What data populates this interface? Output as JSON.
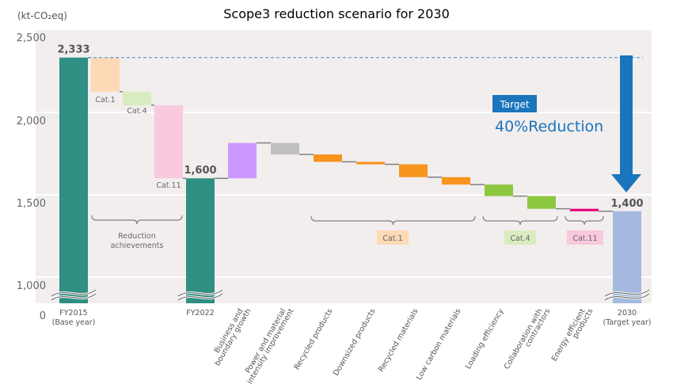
{
  "title": "Scope3 reduction scenario for 2030",
  "unit_label": "(kt-CO₂eq)",
  "chart_data": {
    "type": "bar",
    "subtype": "waterfall",
    "title": "Scope3 reduction scenario for 2030",
    "ylabel": "(kt-CO₂eq)",
    "ylim": [
      0,
      2500
    ],
    "axis_break": "between 0 and 1,000",
    "yticks": [
      "0",
      "1,000",
      "1,500",
      "2,000",
      "2,500"
    ],
    "grid": true,
    "bars": [
      {
        "key": "fy2015",
        "label": "FY2015\n(Base year)",
        "kind": "total",
        "value": 2333,
        "value_label": "2,333",
        "color": "#2f8f83"
      },
      {
        "key": "cat1",
        "label": "Cat.1",
        "kind": "step",
        "value": -207,
        "color": "#fdd9b5",
        "group": "Reduction achievements"
      },
      {
        "key": "cat4",
        "label": "Cat.4",
        "kind": "step",
        "value": -82,
        "color": "#d9ecbf",
        "group": "Reduction achievements"
      },
      {
        "key": "cat11",
        "label": "Cat.11",
        "kind": "step",
        "value": -444,
        "color": "#f9c9de",
        "group": "Reduction achievements"
      },
      {
        "key": "fy2022",
        "label": "FY2022",
        "kind": "total",
        "value": 1600,
        "value_label": "1,600",
        "color": "#2f8f83"
      },
      {
        "key": "business",
        "label": "Business and\nboundary growth",
        "kind": "step",
        "value": 215,
        "color": "#cc99ff"
      },
      {
        "key": "power",
        "label": "Power and material\nintensity improvement",
        "kind": "step",
        "value": -70,
        "color": "#bfbfbf"
      },
      {
        "key": "recycled_products",
        "label": "Recycled products",
        "kind": "step",
        "value": -45,
        "color": "#f7941d",
        "group": "Cat.1"
      },
      {
        "key": "downsized",
        "label": "Downsized products",
        "kind": "step",
        "value": -15,
        "color": "#f7941d",
        "group": "Cat.1"
      },
      {
        "key": "recycled_materials",
        "label": "Recycled materials",
        "kind": "step",
        "value": -78,
        "color": "#f7941d",
        "group": "Cat.1"
      },
      {
        "key": "low_carbon",
        "label": "Low carbon materials",
        "kind": "step",
        "value": -45,
        "color": "#f7941d",
        "group": "Cat.1"
      },
      {
        "key": "loading",
        "label": "Loading efficiency",
        "kind": "step",
        "value": -70,
        "color": "#8dc63f",
        "group": "Cat.4"
      },
      {
        "key": "collaboration",
        "label": "Collaboration with\ncontractors",
        "kind": "step",
        "value": -77,
        "color": "#8dc63f",
        "group": "Cat.4"
      },
      {
        "key": "energy",
        "label": "Energy efficient\nproducts",
        "kind": "step",
        "value": -15,
        "color": "#e6007e",
        "group": "Cat.11"
      },
      {
        "key": "target2030",
        "label": "2030\n(Target year)",
        "kind": "total",
        "value": 1400,
        "value_label": "1,400",
        "color": "#a4b9dd"
      }
    ],
    "groups": [
      {
        "label": "Reduction achievements",
        "color": "none"
      },
      {
        "label": "Cat.1",
        "color": "#fdd9b5"
      },
      {
        "label": "Cat.4",
        "color": "#d9ecbf"
      },
      {
        "label": "Cat.11",
        "color": "#f9c9de"
      }
    ],
    "annotations": {
      "target_badge": "Target",
      "target_text": "40%Reduction",
      "target_color": "#1a75bc",
      "baseline_line_value": 2333
    }
  }
}
